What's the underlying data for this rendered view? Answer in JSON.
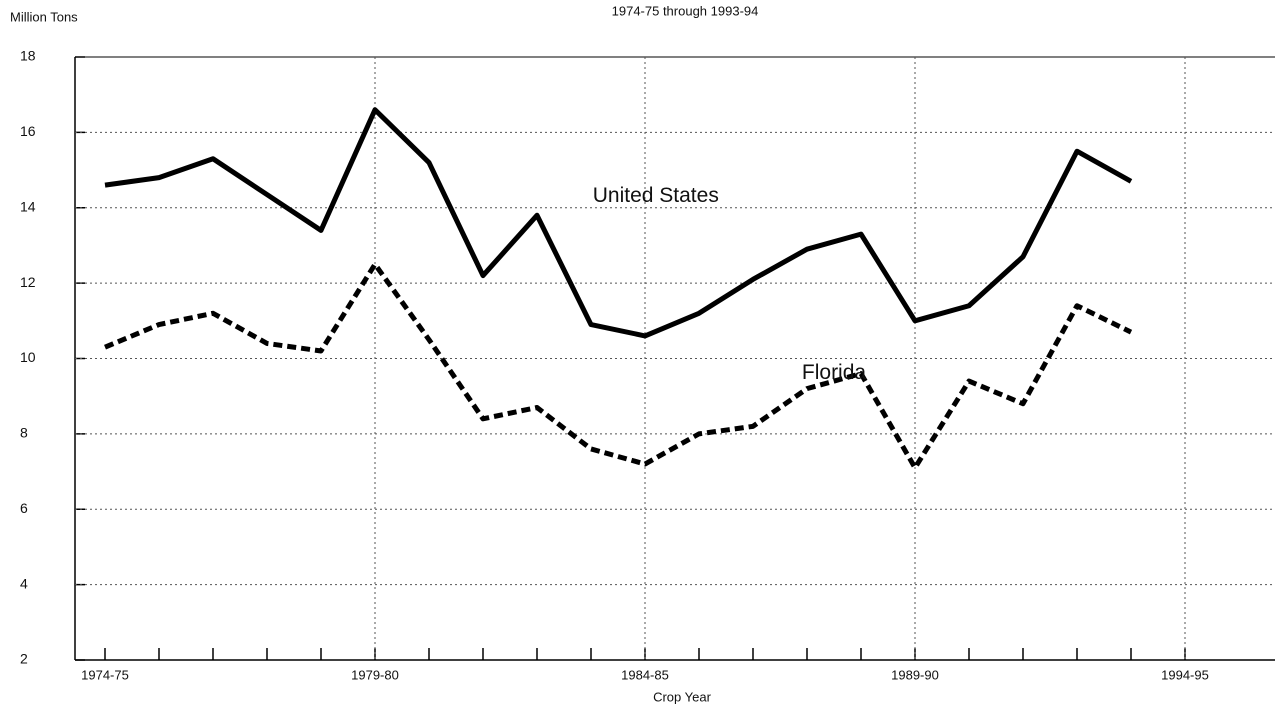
{
  "chart_data": {
    "type": "line",
    "subtitle": "1974-75 through 1993-94",
    "y_label": "Million Tons",
    "x_label": "Crop Year",
    "categories": [
      "1974-75",
      null,
      null,
      null,
      null,
      "1979-80",
      null,
      null,
      null,
      null,
      "1984-85",
      null,
      null,
      null,
      null,
      "1989-90",
      null,
      null,
      null,
      null,
      "1994-95"
    ],
    "series": [
      {
        "name": "United States",
        "color": "#000000",
        "dash": "solid",
        "values": [
          14.6,
          14.8,
          15.3,
          14.35,
          13.4,
          16.6,
          15.2,
          12.2,
          13.8,
          10.9,
          10.6,
          11.2,
          12.1,
          12.9,
          13.3,
          11.0,
          11.4,
          12.7,
          15.5,
          14.7,
          null
        ]
      },
      {
        "name": "Florida",
        "color": "#000000",
        "dash": "dashed",
        "values": [
          10.3,
          10.9,
          11.2,
          10.4,
          10.2,
          12.5,
          10.5,
          8.4,
          8.7,
          7.6,
          7.2,
          8.0,
          8.2,
          9.2,
          9.6,
          7.1,
          9.4,
          8.8,
          11.4,
          10.7,
          null
        ]
      }
    ],
    "ylim": [
      2,
      18
    ],
    "yticks": [
      2,
      4,
      6,
      8,
      10,
      12,
      14,
      16,
      18
    ],
    "grid": true
  }
}
